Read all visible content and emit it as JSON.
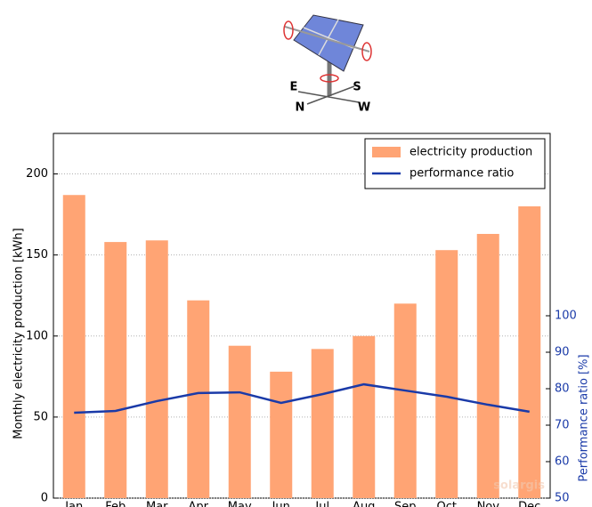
{
  "chart_data": {
    "type": "bar_line",
    "categories": [
      "Jan",
      "Feb",
      "Mar",
      "Apr",
      "May",
      "Jun",
      "Jul",
      "Aug",
      "Sep",
      "Oct",
      "Nov",
      "Dec"
    ],
    "series": [
      {
        "name": "electricity production",
        "type": "bar",
        "color": "#ffa474",
        "values": [
          187,
          158,
          159,
          122,
          94,
          78,
          92,
          100,
          120,
          153,
          163,
          180
        ]
      },
      {
        "name": "performance ratio",
        "type": "line",
        "axis": "y2",
        "color": "#1a3aa8",
        "values": [
          73.4,
          73.9,
          76.6,
          78.8,
          79,
          76.1,
          78.5,
          81.2,
          79.5,
          77.8,
          75.6,
          73.7
        ]
      }
    ],
    "ylabel": "Monthly electricity production [kWh]",
    "y2label": "Performance ratio [%]",
    "ylim": [
      0,
      225
    ],
    "yticks": [
      0,
      50,
      100,
      150,
      200
    ],
    "y2lim": [
      50,
      150
    ],
    "y2ticks": [
      50,
      60,
      70,
      80,
      90,
      100
    ],
    "y2color": "#1a3aa8",
    "grid": true,
    "legend": "upper right",
    "watermark": "solargis",
    "compass_labels": [
      "E",
      "S",
      "N",
      "W"
    ]
  }
}
